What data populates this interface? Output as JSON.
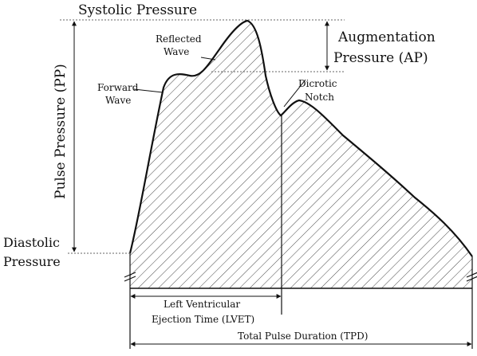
{
  "labels": {
    "systolic": "Systolic Pressure",
    "augmentation_line1": "Augmentation",
    "augmentation_line2": "Pressure (AP)",
    "pulse_pressure": "Pulse Pressure (PP)",
    "diastolic_line1": "Diastolic",
    "diastolic_line2": "Pressure",
    "reflected_line1": "Reflected",
    "reflected_line2": "Wave",
    "forward_line1": "Forward",
    "forward_line2": "Wave",
    "dicrotic_line1": "Dicrotic",
    "dicrotic_line2": "Notch",
    "lvet_line1": "Left Ventricular",
    "lvet_line2": "Ejection Time (LVET)",
    "tpd": "Total Pulse Duration (TPD)"
  }
}
